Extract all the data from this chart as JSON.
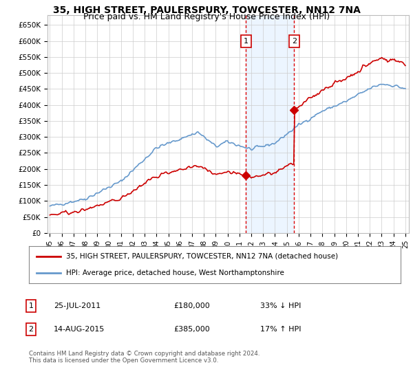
{
  "title": "35, HIGH STREET, PAULERSPURY, TOWCESTER, NN12 7NA",
  "subtitle": "Price paid vs. HM Land Registry's House Price Index (HPI)",
  "title_fontsize": 10,
  "subtitle_fontsize": 9,
  "xlim_start": 1995.0,
  "xlim_end": 2025.3,
  "ylim": [
    0,
    680000
  ],
  "yticks": [
    0,
    50000,
    100000,
    150000,
    200000,
    250000,
    300000,
    350000,
    400000,
    450000,
    500000,
    550000,
    600000,
    650000
  ],
  "ytick_labels": [
    "£0",
    "£50K",
    "£100K",
    "£150K",
    "£200K",
    "£250K",
    "£300K",
    "£350K",
    "£400K",
    "£450K",
    "£500K",
    "£550K",
    "£600K",
    "£650K"
  ],
  "xtick_years": [
    1995,
    1996,
    1997,
    1998,
    1999,
    2000,
    2001,
    2002,
    2003,
    2004,
    2005,
    2006,
    2007,
    2008,
    2009,
    2010,
    2011,
    2012,
    2013,
    2014,
    2015,
    2016,
    2017,
    2018,
    2019,
    2020,
    2021,
    2022,
    2023,
    2024,
    2025
  ],
  "hpi_color": "#6699cc",
  "price_color": "#cc0000",
  "transaction1_x": 2011.55,
  "transaction1_y": 180000,
  "transaction1_label": "1",
  "transaction2_x": 2015.62,
  "transaction2_y": 385000,
  "transaction2_label": "2",
  "vline1_x": 2011.55,
  "vline2_x": 2015.62,
  "shade_color": "#ddeeff",
  "shade_alpha": 0.55,
  "grid_color": "#cccccc",
  "background_color": "#ffffff",
  "legend_line1": "35, HIGH STREET, PAULERSPURY, TOWCESTER, NN12 7NA (detached house)",
  "legend_line2": "HPI: Average price, detached house, West Northamptonshire",
  "note1_label": "1",
  "note1_date": "25-JUL-2011",
  "note1_price": "£180,000",
  "note1_change": "33% ↓ HPI",
  "note2_label": "2",
  "note2_date": "14-AUG-2015",
  "note2_price": "£385,000",
  "note2_change": "17% ↑ HPI",
  "footer": "Contains HM Land Registry data © Crown copyright and database right 2024.\nThis data is licensed under the Open Government Licence v3.0."
}
